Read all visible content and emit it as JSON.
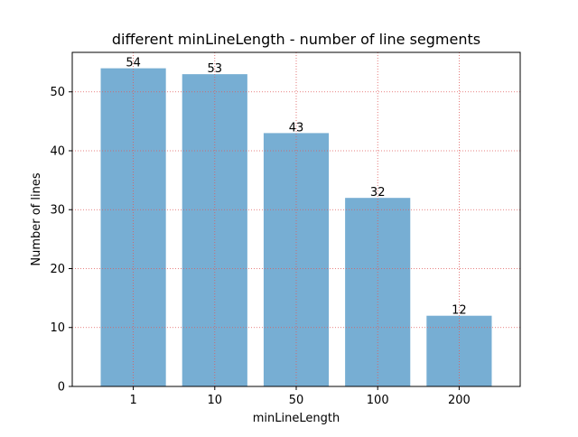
{
  "chart_data": {
    "type": "bar",
    "title": "different minLineLength - number of line segments",
    "xlabel": "minLineLength",
    "ylabel": "Number of lines",
    "categories": [
      "1",
      "10",
      "50",
      "100",
      "200"
    ],
    "values": [
      54,
      53,
      43,
      32,
      12
    ],
    "data_labels": [
      "54",
      "53",
      "43",
      "32",
      "12"
    ],
    "ylim": [
      0,
      56.7
    ],
    "yticks": [
      0,
      10,
      20,
      30,
      40,
      50
    ],
    "grid": true,
    "grid_style": "dotted",
    "grid_color": "#e05a5a",
    "bar_color": "#77aed3",
    "legend": "none"
  }
}
